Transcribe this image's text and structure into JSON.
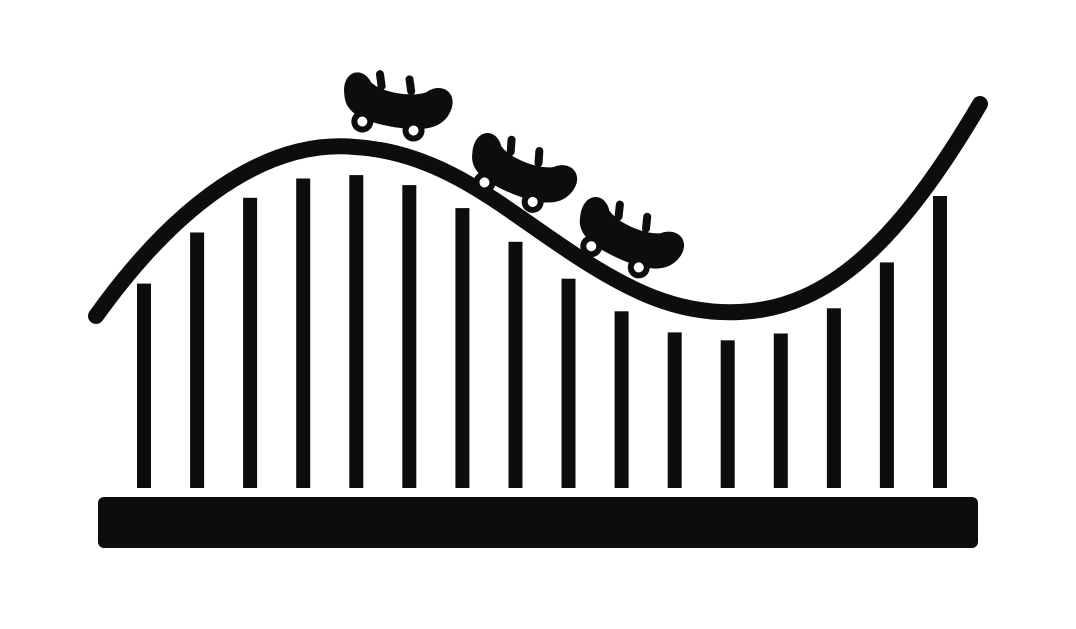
{
  "colors": {
    "background": "#ffffff",
    "ink": "#0d0d0d"
  },
  "icons": {
    "illustration": "roller-coaster-icon",
    "track": "track-icon",
    "support": "support-post-icon",
    "car": "coaster-car-icon",
    "wheel": "wheel-icon",
    "seat": "seat-icon",
    "base": "ground-base-icon"
  },
  "counts": {
    "cars": 3,
    "support_posts": 16
  }
}
